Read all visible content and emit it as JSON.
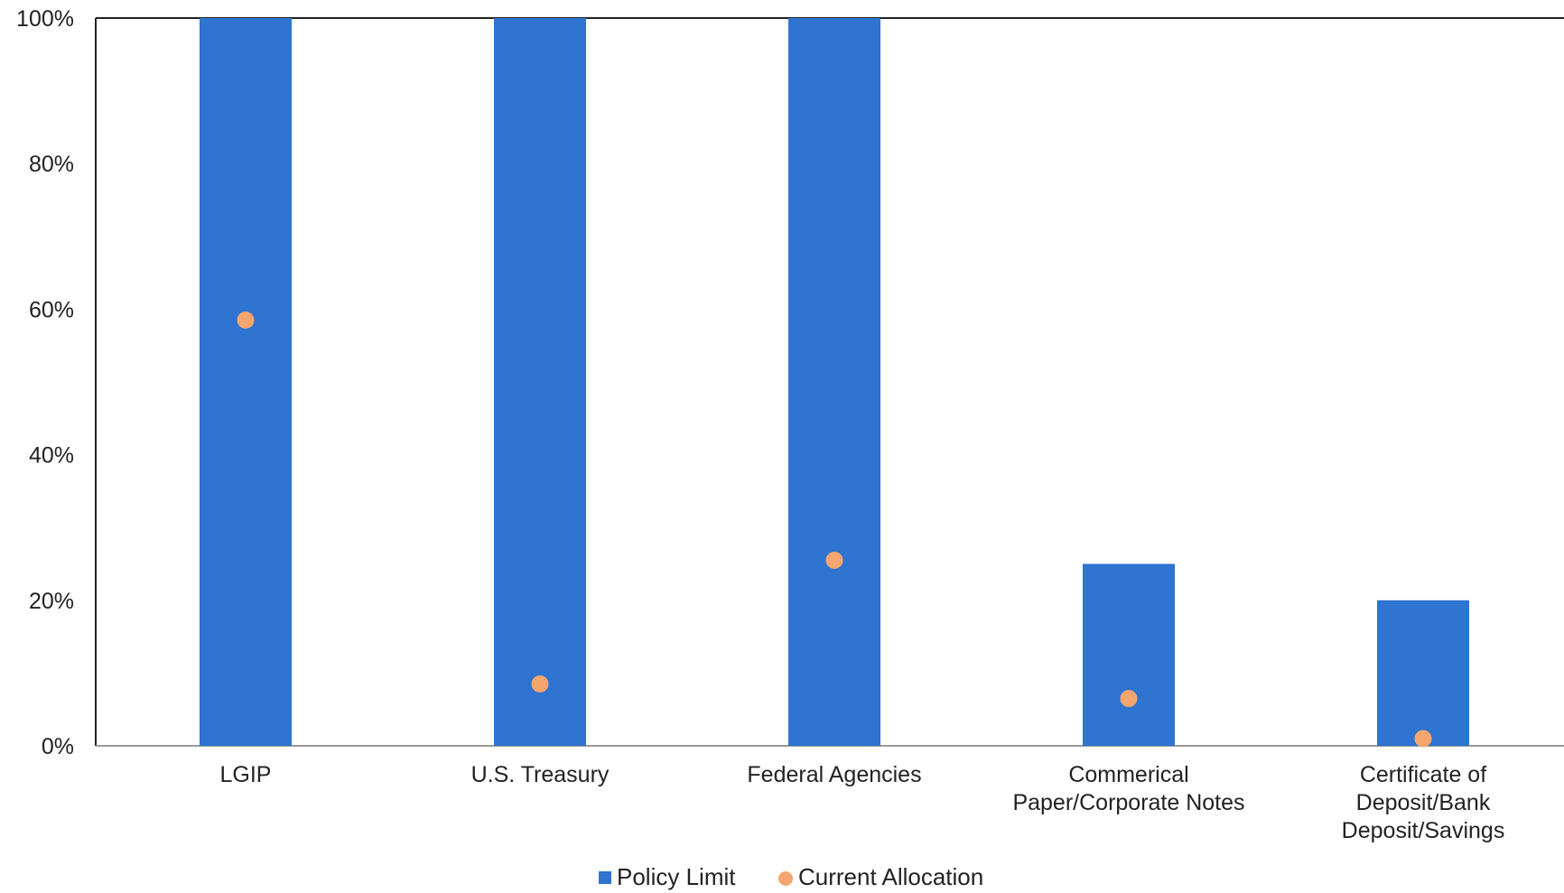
{
  "chart_data": {
    "type": "bar",
    "categories": [
      [
        "LGIP"
      ],
      [
        "U.S. Treasury"
      ],
      [
        "Federal Agencies"
      ],
      [
        "Commerical",
        "Paper/Corporate Notes"
      ],
      [
        "Certificate of",
        "Deposit/Bank",
        "Deposit/Savings"
      ]
    ],
    "series": [
      {
        "name": "Policy Limit",
        "kind": "bar",
        "values": [
          100,
          100,
          100,
          25,
          20
        ],
        "color": "#2e74d0"
      },
      {
        "name": "Current Allocation",
        "kind": "point",
        "values": [
          58.5,
          8.5,
          25.5,
          6.5,
          1
        ],
        "color": "#f5a66e"
      }
    ],
    "y_ticks": [
      "0%",
      "20%",
      "40%",
      "60%",
      "80%",
      "100%"
    ],
    "ylim": [
      0,
      100
    ],
    "grid": false,
    "legend_position": "bottom-center"
  }
}
